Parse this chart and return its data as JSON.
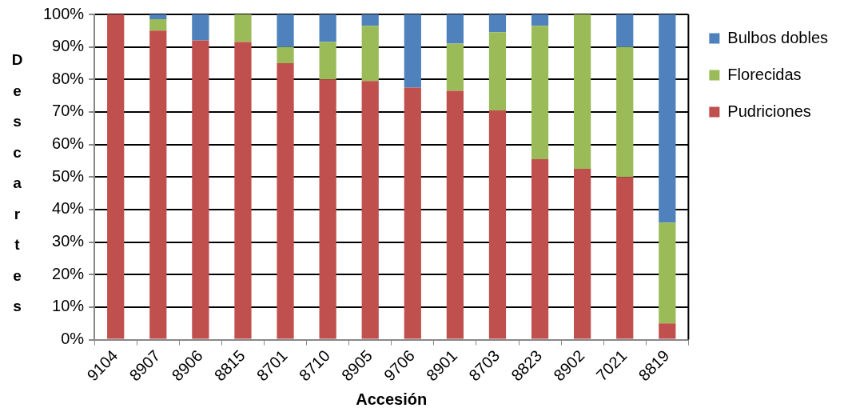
{
  "chart_data": {
    "type": "bar",
    "stacked": true,
    "xlabel": "Accesión",
    "ylabel": "Descartes",
    "categories": [
      "9104",
      "8907",
      "8906",
      "8815",
      "8701",
      "8710",
      "8905",
      "9706",
      "8901",
      "8703",
      "8823",
      "8902",
      "7021",
      "8819"
    ],
    "series": [
      {
        "name": "Pudriciones",
        "color": "#c0504d",
        "values": [
          100,
          95,
          92,
          91.5,
          85,
          80,
          79.5,
          77.5,
          76.5,
          70.5,
          55.5,
          52.5,
          50,
          5
        ]
      },
      {
        "name": "Florecidas",
        "color": "#9bbb59",
        "values": [
          0,
          3.5,
          0,
          8.5,
          5,
          11.5,
          17,
          0,
          14.5,
          24,
          41,
          47.5,
          40,
          31
        ]
      },
      {
        "name": "Bulbos dobles",
        "color": "#4f81bd",
        "values": [
          0,
          1.5,
          8,
          0,
          10,
          8.5,
          3.5,
          22.5,
          9,
          5.5,
          3.5,
          0,
          10,
          64
        ]
      }
    ],
    "ylim": [
      0,
      100
    ],
    "yticks": [
      {
        "value": 0,
        "label": "0%"
      },
      {
        "value": 10,
        "label": "10%"
      },
      {
        "value": 20,
        "label": "20%"
      },
      {
        "value": 30,
        "label": "30%"
      },
      {
        "value": 40,
        "label": "40%"
      },
      {
        "value": 50,
        "label": "50%"
      },
      {
        "value": 60,
        "label": "60%"
      },
      {
        "value": 70,
        "label": "70%"
      },
      {
        "value": 80,
        "label": "80%"
      },
      {
        "value": 90,
        "label": "90%"
      },
      {
        "value": 100,
        "label": "100%"
      }
    ],
    "grid": "y",
    "legend": "top right"
  }
}
